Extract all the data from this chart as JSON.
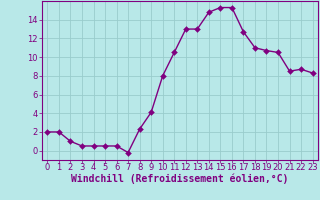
{
  "x": [
    0,
    1,
    2,
    3,
    4,
    5,
    6,
    7,
    8,
    9,
    10,
    11,
    12,
    13,
    14,
    15,
    16,
    17,
    18,
    19,
    20,
    21,
    22,
    23
  ],
  "y": [
    2,
    2,
    1,
    0.5,
    0.5,
    0.5,
    0.5,
    -0.2,
    2.3,
    4.1,
    8.0,
    10.5,
    13.0,
    13.0,
    14.8,
    15.3,
    15.3,
    12.7,
    11.0,
    10.7,
    10.5,
    8.5,
    8.7,
    8.3
  ],
  "line_color": "#800080",
  "marker_color": "#800080",
  "bg_color": "#b8e8e8",
  "grid_color": "#99cccc",
  "xlabel": "Windchill (Refroidissement éolien,°C)",
  "xlim": [
    -0.5,
    23.5
  ],
  "ylim": [
    -1,
    16
  ],
  "yticks": [
    0,
    2,
    4,
    6,
    8,
    10,
    12,
    14
  ],
  "xticks": [
    0,
    1,
    2,
    3,
    4,
    5,
    6,
    7,
    8,
    9,
    10,
    11,
    12,
    13,
    14,
    15,
    16,
    17,
    18,
    19,
    20,
    21,
    22,
    23
  ],
  "font_size_xlabel": 7,
  "font_size_tick": 6,
  "marker_size": 3,
  "line_width": 1.0
}
